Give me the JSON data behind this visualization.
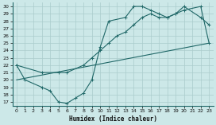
{
  "xlabel": "Humidex (Indice chaleur)",
  "bg_color": "#cce8e8",
  "grid_color": "#aacccc",
  "line_color": "#206868",
  "xlim": [
    -0.5,
    23.5
  ],
  "ylim": [
    16.5,
    30.5
  ],
  "xticks": [
    0,
    1,
    2,
    3,
    4,
    5,
    6,
    7,
    8,
    9,
    10,
    11,
    12,
    13,
    14,
    15,
    16,
    17,
    18,
    19,
    20,
    21,
    22,
    23
  ],
  "yticks": [
    17,
    18,
    19,
    20,
    21,
    22,
    23,
    24,
    25,
    26,
    27,
    28,
    29,
    30
  ],
  "line1_x": [
    0,
    1,
    3,
    4,
    5,
    6,
    7,
    8,
    9,
    10,
    11,
    13,
    14,
    15,
    16,
    17,
    18,
    19,
    20,
    22,
    23
  ],
  "line1_y": [
    22,
    20,
    19,
    18.5,
    17,
    16.8,
    17.5,
    18.2,
    20,
    24.5,
    28,
    28.5,
    30,
    30,
    29.5,
    29,
    28.5,
    29,
    30,
    28.5,
    27.5
  ],
  "line2_x": [
    0,
    3,
    5,
    6,
    8,
    9,
    10,
    11,
    12,
    13,
    14,
    15,
    16,
    17,
    18,
    19,
    20,
    22,
    23
  ],
  "line2_y": [
    22,
    21,
    21,
    21,
    22,
    23,
    24,
    25,
    26,
    26.5,
    27.5,
    28.5,
    29,
    28.5,
    28.5,
    29,
    29.5,
    30,
    25
  ],
  "line3_x": [
    0,
    23
  ],
  "line3_y": [
    20,
    25
  ],
  "xlabel_fontsize": 5.5,
  "tick_fontsize": 4.5
}
